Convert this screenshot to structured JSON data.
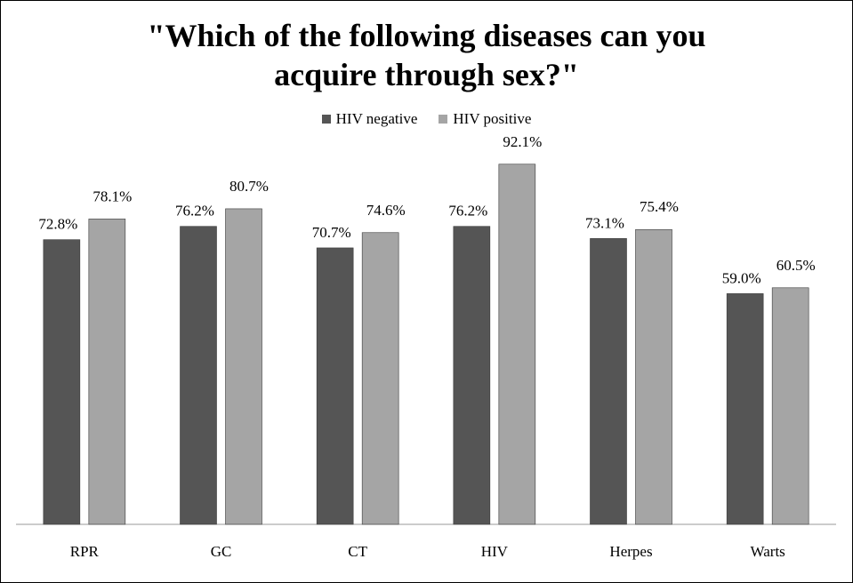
{
  "chart_data": {
    "type": "bar",
    "title": "\"Which of the following diseases can you acquire through sex?\"",
    "title_lines": [
      "\"Which of the following diseases can you",
      "acquire through sex?\""
    ],
    "categories": [
      "RPR",
      "GC",
      "CT",
      "HIV",
      "Herpes",
      "Warts"
    ],
    "series": [
      {
        "name": "HIV negative",
        "values": [
          72.8,
          76.2,
          70.7,
          76.2,
          73.1,
          59.0
        ],
        "labels": [
          "72.8%",
          "76.2%",
          "70.7%",
          "76.2%",
          "73.1%",
          "59.0%"
        ],
        "color": "#555555"
      },
      {
        "name": "HIV positive",
        "values": [
          78.1,
          80.7,
          74.6,
          92.1,
          75.4,
          60.5
        ],
        "labels": [
          "78.1%",
          "80.7%",
          "74.6%",
          "92.1%",
          "75.4%",
          "60.5%"
        ],
        "color": "#a5a5a5"
      }
    ],
    "xlabel": "",
    "ylabel": "",
    "ylim": [
      0,
      100
    ],
    "grid": false,
    "legend_position": "top"
  }
}
